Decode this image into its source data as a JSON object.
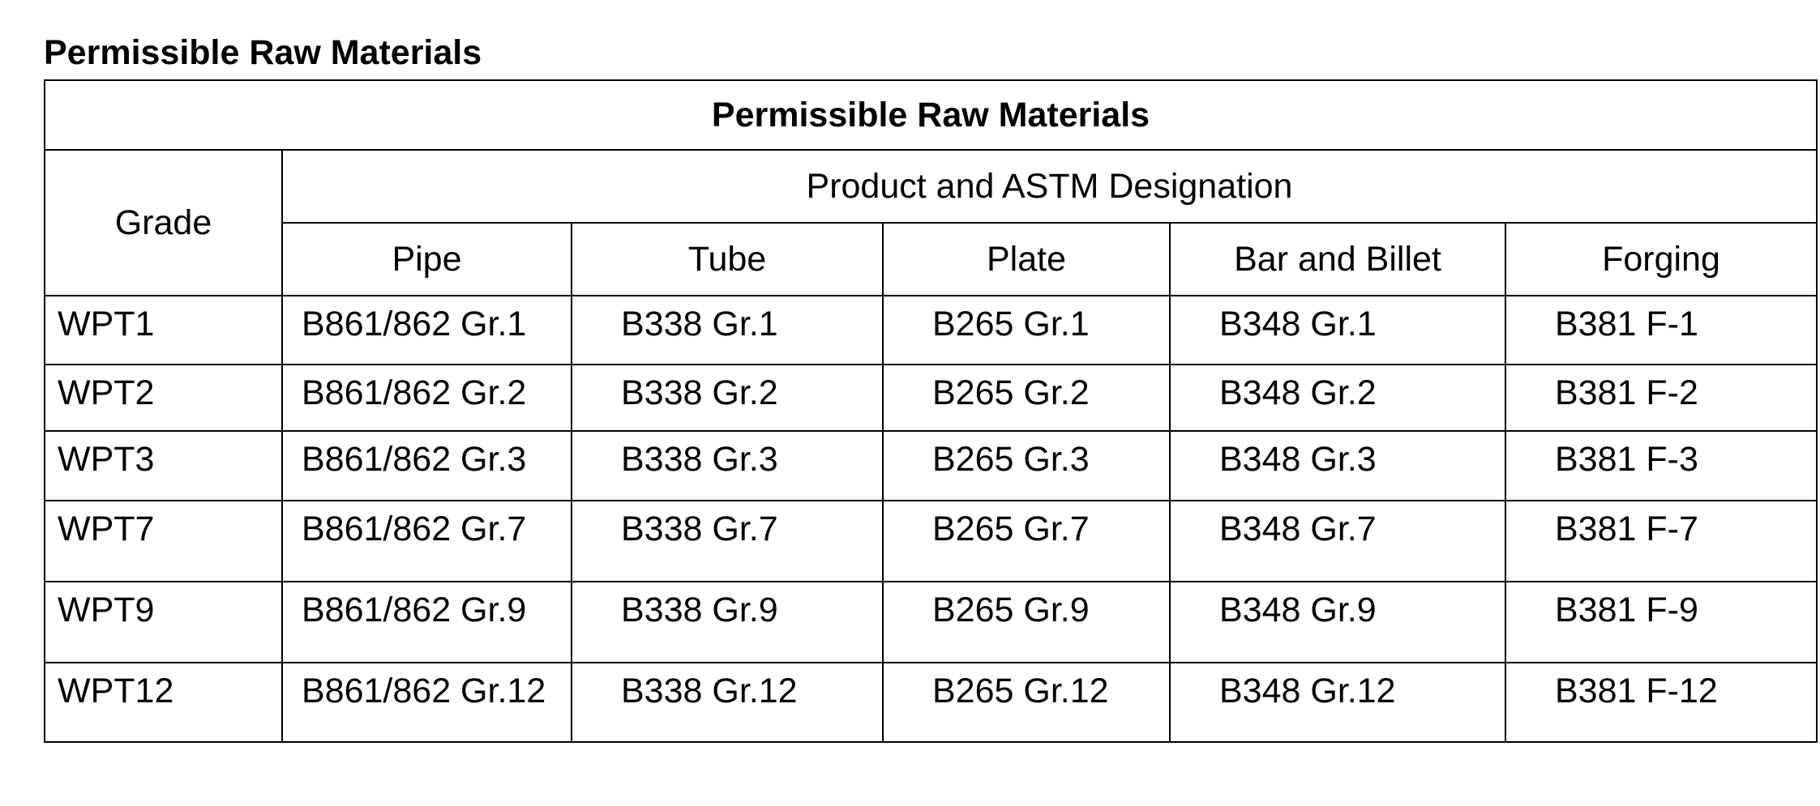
{
  "heading": "Permissible Raw Materials",
  "table": {
    "title": "Permissible Raw Materials",
    "grade_header": "Grade",
    "group_header": "Product and ASTM Designation",
    "columns": [
      "Pipe",
      "Tube",
      "Plate",
      "Bar and Billet",
      "Forging"
    ],
    "rows": [
      [
        "WPT1",
        "B861/862 Gr.1",
        "B338 Gr.1",
        "B265 Gr.1",
        "B348 Gr.1",
        "B381 F-1"
      ],
      [
        "WPT2",
        "B861/862 Gr.2",
        "B338 Gr.2",
        "B265 Gr.2",
        "B348 Gr.2",
        "B381 F-2"
      ],
      [
        "WPT3",
        "B861/862 Gr.3",
        "B338 Gr.3",
        "B265 Gr.3",
        "B348 Gr.3",
        "B381 F-3"
      ],
      [
        "WPT7",
        "B861/862 Gr.7",
        "B338 Gr.7",
        "B265 Gr.7",
        "B348 Gr.7",
        "B381 F-7"
      ],
      [
        "WPT9",
        "B861/862 Gr.9",
        "B338 Gr.9",
        "B265 Gr.9",
        "B348 Gr.9",
        "B381 F-9"
      ],
      [
        "WPT12",
        "B861/862 Gr.12",
        "B338 Gr.12",
        "B265 Gr.12",
        "B348 Gr.12",
        "B381 F-12"
      ]
    ]
  }
}
